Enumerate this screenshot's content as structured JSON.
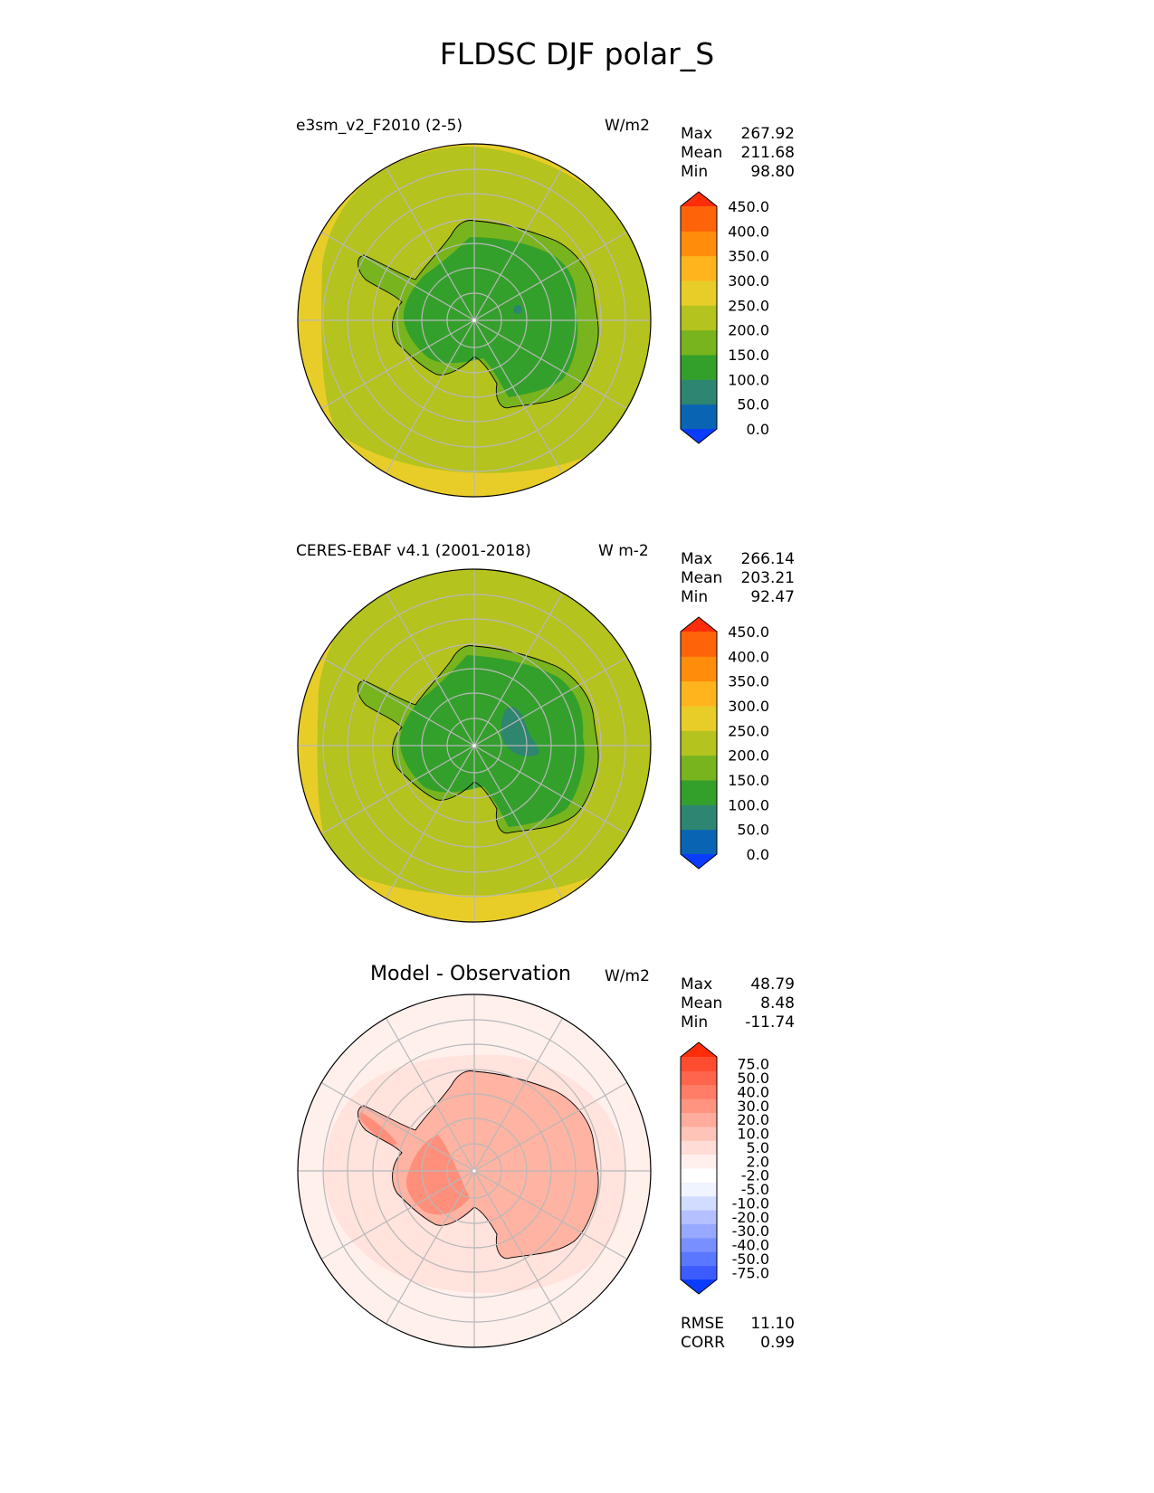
{
  "figure": {
    "title": "FLDSC DJF polar_S"
  },
  "panels": [
    {
      "name": "test",
      "title_left": "e3sm_v2_F2010 (2-5)",
      "units": "W/m2",
      "stats": [
        {
          "label": "Max",
          "value": "267.92"
        },
        {
          "label": "Mean",
          "value": "211.68"
        },
        {
          "label": "Min",
          "value": "98.80"
        }
      ]
    },
    {
      "name": "ref",
      "title_left": "CERES-EBAF v4.1 (2001-2018)",
      "units": "W m-2",
      "stats": [
        {
          "label": "Max",
          "value": "266.14"
        },
        {
          "label": "Mean",
          "value": "203.21"
        },
        {
          "label": "Min",
          "value": "92.47"
        }
      ]
    },
    {
      "name": "diff",
      "title_center": "Model - Observation",
      "units": "W/m2",
      "stats": [
        {
          "label": "Max",
          "value": "48.79"
        },
        {
          "label": "Mean",
          "value": "8.48"
        },
        {
          "label": "Min",
          "value": "-11.74"
        }
      ],
      "extra_stats": [
        {
          "label": "RMSE",
          "value": "11.10"
        },
        {
          "label": "CORR",
          "value": "0.99"
        }
      ]
    }
  ],
  "colorbars": {
    "main": {
      "colors": [
        "#0a3cff",
        "#0a64b4",
        "#2e8570",
        "#34a02c",
        "#78b41e",
        "#b4c31e",
        "#e8cd28",
        "#ffb41e",
        "#ff8c0a",
        "#ff640a",
        "#ff2d0a"
      ],
      "ticks": [
        "0.0",
        "50.0",
        "100.0",
        "150.0",
        "200.0",
        "250.0",
        "300.0",
        "350.0",
        "400.0",
        "450.0"
      ]
    },
    "diff": {
      "colors": [
        "#0a3cff",
        "#3c5cff",
        "#5a78ff",
        "#7890ff",
        "#96a8ff",
        "#b4c0ff",
        "#d2dcff",
        "#f0f4ff",
        "#ffffff",
        "#fff0ee",
        "#ffdcd6",
        "#ffc4b8",
        "#ffac9c",
        "#ff9480",
        "#ff7c66",
        "#ff644c",
        "#ff4c30",
        "#ff2d0a"
      ],
      "ticks": [
        "-75.0",
        "-50.0",
        "-40.0",
        "-30.0",
        "-20.0",
        "-10.0",
        "-5.0",
        "-2.0",
        "2.0",
        "5.0",
        "10.0",
        "20.0",
        "30.0",
        "40.0",
        "50.0",
        "75.0"
      ]
    }
  },
  "map_colors": {
    "ocean": "#b4c31e",
    "outer_band": "#e8cd28",
    "ice_edge": "#78b41e",
    "ice_interior": "#34a02c",
    "ice_core": "#2e8570",
    "diff_ocean": "#ffe3dc",
    "diff_land": "#ffb3a3",
    "diff_core": "#ff8f7a",
    "grid": "#b8b8b8"
  }
}
